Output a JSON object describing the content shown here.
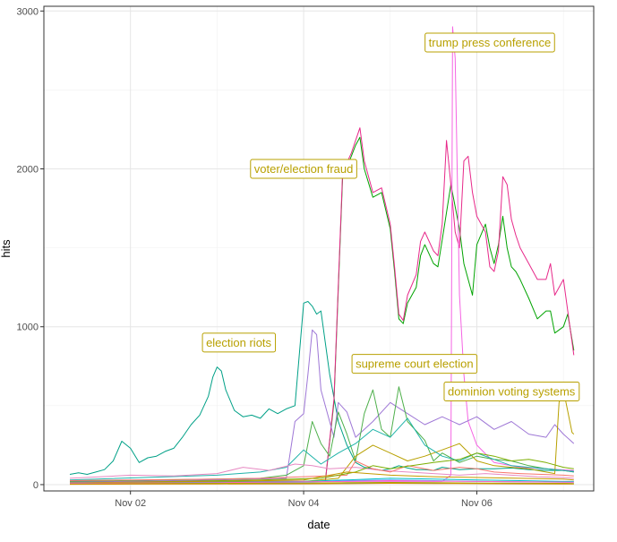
{
  "chart_data": {
    "type": "line",
    "title": "",
    "xlabel": "date",
    "ylabel": "hits",
    "x_ticks": [
      {
        "value": 2,
        "label": "Nov 02"
      },
      {
        "value": 4,
        "label": "Nov 04"
      },
      {
        "value": 6,
        "label": "Nov 06"
      }
    ],
    "y_ticks": [
      0,
      1000,
      2000,
      3000
    ],
    "xlim": [
      1.0,
      7.35
    ],
    "ylim": [
      -40,
      3030
    ],
    "grid": true,
    "legend": "none",
    "annotation_color": "#B8A000",
    "annotations": [
      {
        "text": "trump press conference",
        "x": 6.15,
        "y": 2800
      },
      {
        "text": "voter/election fraud",
        "x": 4.0,
        "y": 2000
      },
      {
        "text": "election riots",
        "x": 3.25,
        "y": 900
      },
      {
        "text": "supreme court election",
        "x": 5.28,
        "y": 765
      },
      {
        "text": "dominion voting systems",
        "x": 6.4,
        "y": 590
      }
    ],
    "series": [
      {
        "color": "#00A087",
        "x": [
          1.3,
          1.4,
          1.5,
          1.6,
          1.7,
          1.8,
          1.9,
          2.0,
          2.1,
          2.2,
          2.3,
          2.4,
          2.5,
          2.6,
          2.7,
          2.8,
          2.9,
          2.95,
          3.0,
          3.05,
          3.1,
          3.2,
          3.3,
          3.4,
          3.5,
          3.6,
          3.7,
          3.8,
          3.9,
          4.0,
          4.05,
          4.1,
          4.15,
          4.2,
          4.3,
          4.4,
          4.5,
          4.6,
          4.7,
          4.8,
          4.9,
          5.0,
          5.1,
          5.2,
          5.3,
          5.4,
          5.5,
          5.6,
          5.8,
          6.0,
          6.2,
          6.4,
          6.6,
          6.8,
          7.0,
          7.12
        ],
        "y": [
          65,
          75,
          65,
          80,
          95,
          150,
          275,
          230,
          140,
          170,
          180,
          210,
          230,
          300,
          380,
          440,
          560,
          680,
          745,
          720,
          600,
          470,
          430,
          440,
          420,
          480,
          450,
          480,
          500,
          1150,
          1160,
          1130,
          1080,
          1100,
          700,
          400,
          250,
          140,
          110,
          100,
          90,
          100,
          120,
          105,
          95,
          95,
          90,
          110,
          95,
          100,
          100,
          105,
          95,
          90,
          90,
          85
        ]
      },
      {
        "color": "#00A300",
        "x": [
          1.3,
          2.0,
          3.0,
          3.9,
          4.25,
          4.35,
          4.45,
          4.55,
          4.6,
          4.65,
          4.7,
          4.8,
          4.9,
          5.0,
          5.05,
          5.1,
          5.15,
          5.2,
          5.3,
          5.35,
          5.4,
          5.5,
          5.55,
          5.6,
          5.7,
          5.8,
          5.85,
          5.9,
          5.95,
          6.0,
          6.1,
          6.15,
          6.2,
          6.25,
          6.3,
          6.35,
          6.4,
          6.45,
          6.5,
          6.6,
          6.7,
          6.8,
          6.85,
          6.9,
          7.0,
          7.05,
          7.12
        ],
        "y": [
          20,
          20,
          20,
          20,
          20,
          520,
          1950,
          2080,
          2150,
          2200,
          2000,
          1820,
          1850,
          1620,
          1350,
          1050,
          1020,
          1150,
          1250,
          1450,
          1520,
          1400,
          1380,
          1550,
          1900,
          1620,
          1400,
          1300,
          1200,
          1520,
          1650,
          1500,
          1400,
          1520,
          1700,
          1500,
          1380,
          1350,
          1300,
          1180,
          1050,
          1100,
          1100,
          960,
          1000,
          1080,
          850
        ]
      },
      {
        "color": "#E7298A",
        "x": [
          1.3,
          2.0,
          3.0,
          3.9,
          4.25,
          4.35,
          4.45,
          4.55,
          4.6,
          4.65,
          4.7,
          4.8,
          4.9,
          5.0,
          5.05,
          5.1,
          5.15,
          5.2,
          5.3,
          5.35,
          5.4,
          5.5,
          5.55,
          5.6,
          5.65,
          5.7,
          5.75,
          5.8,
          5.85,
          5.9,
          5.95,
          6.0,
          6.1,
          6.15,
          6.2,
          6.25,
          6.3,
          6.35,
          6.4,
          6.45,
          6.5,
          6.6,
          6.7,
          6.8,
          6.85,
          6.9,
          7.0,
          7.05,
          7.12
        ],
        "y": [
          20,
          20,
          20,
          20,
          20,
          540,
          1980,
          2100,
          2180,
          2260,
          2050,
          1850,
          1880,
          1650,
          1380,
          1080,
          1040,
          1200,
          1330,
          1540,
          1600,
          1480,
          1450,
          1650,
          2180,
          1900,
          1600,
          1500,
          2050,
          2080,
          1850,
          1700,
          1600,
          1380,
          1350,
          1480,
          1950,
          1900,
          1680,
          1580,
          1500,
          1400,
          1300,
          1300,
          1400,
          1200,
          1300,
          1100,
          820
        ]
      },
      {
        "color": "#F564E3",
        "x": [
          1.3,
          4.0,
          5.6,
          5.7,
          5.72,
          5.75,
          5.8,
          5.85,
          5.9,
          6.0,
          6.2,
          6.5,
          7.12
        ],
        "y": [
          15,
          20,
          20,
          60,
          2900,
          2700,
          1200,
          700,
          400,
          250,
          140,
          110,
          90
        ]
      },
      {
        "color": "#9E77D6",
        "x": [
          1.3,
          3.0,
          3.8,
          3.9,
          4.0,
          4.05,
          4.1,
          4.15,
          4.2,
          4.3,
          4.35,
          4.4,
          4.5,
          4.6,
          4.8,
          5.0,
          5.2,
          5.4,
          5.6,
          5.8,
          6.0,
          6.2,
          6.4,
          6.6,
          6.8,
          6.9,
          7.0,
          7.12
        ],
        "y": [
          15,
          30,
          40,
          400,
          450,
          700,
          980,
          950,
          600,
          400,
          300,
          520,
          460,
          300,
          400,
          520,
          450,
          380,
          430,
          380,
          430,
          350,
          400,
          320,
          300,
          380,
          320,
          260
        ]
      },
      {
        "color": "#4DAF4A",
        "x": [
          1.3,
          3.5,
          3.8,
          4.0,
          4.1,
          4.2,
          4.3,
          4.4,
          4.5,
          4.6,
          4.7,
          4.8,
          4.9,
          5.0,
          5.1,
          5.2,
          5.3,
          5.4,
          5.5,
          5.6,
          5.8,
          6.0,
          6.2,
          6.4,
          6.6,
          6.8,
          7.0,
          7.12
        ],
        "y": [
          20,
          40,
          60,
          120,
          400,
          260,
          180,
          460,
          320,
          150,
          450,
          600,
          350,
          300,
          620,
          400,
          340,
          280,
          150,
          200,
          140,
          180,
          160,
          150,
          120,
          100,
          90,
          80
        ]
      },
      {
        "color": "#B8A000",
        "x": [
          1.3,
          4.0,
          4.4,
          4.6,
          4.8,
          5.0,
          5.2,
          5.4,
          5.6,
          5.8,
          6.0,
          6.2,
          6.4,
          6.6,
          6.7,
          6.8,
          6.9,
          6.95,
          7.0,
          7.1,
          7.12
        ],
        "y": [
          10,
          20,
          40,
          180,
          250,
          200,
          150,
          180,
          220,
          260,
          150,
          120,
          110,
          100,
          90,
          80,
          70,
          520,
          600,
          330,
          320
        ]
      },
      {
        "color": "#1FB3A9",
        "x": [
          1.3,
          3.0,
          3.5,
          3.8,
          4.0,
          4.2,
          4.4,
          4.6,
          4.8,
          5.0,
          5.2,
          5.4,
          5.6,
          5.8,
          6.0,
          6.2,
          6.4,
          6.6,
          6.8,
          7.0,
          7.12
        ],
        "y": [
          30,
          60,
          80,
          110,
          220,
          130,
          200,
          260,
          350,
          300,
          420,
          250,
          180,
          150,
          200,
          160,
          120,
          110,
          100,
          90,
          80
        ]
      },
      {
        "color": "#E78AC3",
        "x": [
          1.3,
          2.0,
          2.5,
          3.0,
          3.3,
          3.6,
          3.9,
          4.1,
          4.3,
          4.6,
          4.9,
          5.2,
          5.5,
          5.8,
          6.1,
          6.4,
          6.7,
          7.0,
          7.12
        ],
        "y": [
          40,
          60,
          55,
          70,
          110,
          90,
          130,
          120,
          100,
          110,
          90,
          80,
          70,
          60,
          70,
          60,
          50,
          45,
          40
        ]
      },
      {
        "color": "#F8766D",
        "x": [
          1.3,
          2.0,
          3.0,
          3.5,
          4.0,
          4.5,
          4.6,
          4.8,
          5.0,
          5.2,
          5.5,
          5.8,
          6.0,
          6.2,
          6.5,
          7.0,
          7.12
        ],
        "y": [
          25,
          30,
          35,
          40,
          50,
          60,
          150,
          100,
          80,
          120,
          90,
          110,
          100,
          80,
          70,
          60,
          55
        ]
      },
      {
        "color": "#7CAE00",
        "x": [
          1.3,
          2.5,
          3.5,
          4.2,
          4.4,
          4.6,
          4.8,
          5.0,
          5.5,
          5.8,
          6.0,
          6.2,
          6.4,
          6.6,
          6.8,
          7.0,
          7.12
        ],
        "y": [
          10,
          20,
          30,
          40,
          60,
          80,
          120,
          100,
          140,
          160,
          200,
          180,
          150,
          160,
          140,
          110,
          100
        ]
      },
      {
        "color": "#C49A00",
        "x": [
          1.3,
          2.0,
          3.0,
          4.0,
          4.5,
          5.0,
          5.5,
          6.0,
          6.5,
          7.0,
          7.12
        ],
        "y": [
          10,
          15,
          20,
          30,
          80,
          60,
          50,
          45,
          40,
          35,
          30
        ]
      },
      {
        "color": "#00BFC4",
        "x": [
          1.3,
          2.0,
          3.0,
          4.0,
          4.5,
          5.0,
          5.5,
          6.0,
          6.5,
          7.0,
          7.12
        ],
        "y": [
          5,
          10,
          15,
          20,
          30,
          40,
          35,
          30,
          25,
          20,
          20
        ]
      },
      {
        "color": "#619CFF",
        "x": [
          1.3,
          2.0,
          3.0,
          4.0,
          4.5,
          5.0,
          5.5,
          6.0,
          6.5,
          7.0,
          7.12
        ],
        "y": [
          5,
          8,
          10,
          15,
          25,
          30,
          25,
          20,
          18,
          15,
          15
        ]
      },
      {
        "color": "#FF61C3",
        "x": [
          1.3,
          2.0,
          3.0,
          4.0,
          4.5,
          5.0,
          5.5,
          6.0,
          6.5,
          7.0,
          7.12
        ],
        "y": [
          8,
          10,
          12,
          18,
          20,
          25,
          22,
          20,
          18,
          16,
          15
        ]
      },
      {
        "color": "#00B0F6",
        "x": [
          1.3,
          2.0,
          3.0,
          4.0,
          4.5,
          5.0,
          5.5,
          6.0,
          6.5,
          7.0,
          7.12
        ],
        "y": [
          3,
          5,
          6,
          8,
          10,
          12,
          10,
          9,
          8,
          7,
          6
        ]
      },
      {
        "color": "#A3A500",
        "x": [
          1.3,
          2.0,
          3.0,
          4.0,
          4.5,
          5.0,
          5.5,
          6.0,
          6.5,
          7.0,
          7.12
        ],
        "y": [
          4,
          6,
          8,
          10,
          12,
          14,
          12,
          10,
          9,
          8,
          7
        ]
      },
      {
        "color": "#D89000",
        "x": [
          1.3,
          2.0,
          3.0,
          4.0,
          4.5,
          5.0,
          5.5,
          6.0,
          6.5,
          7.0,
          7.12
        ],
        "y": [
          2,
          3,
          4,
          5,
          6,
          8,
          7,
          6,
          5,
          4,
          4
        ]
      }
    ]
  }
}
